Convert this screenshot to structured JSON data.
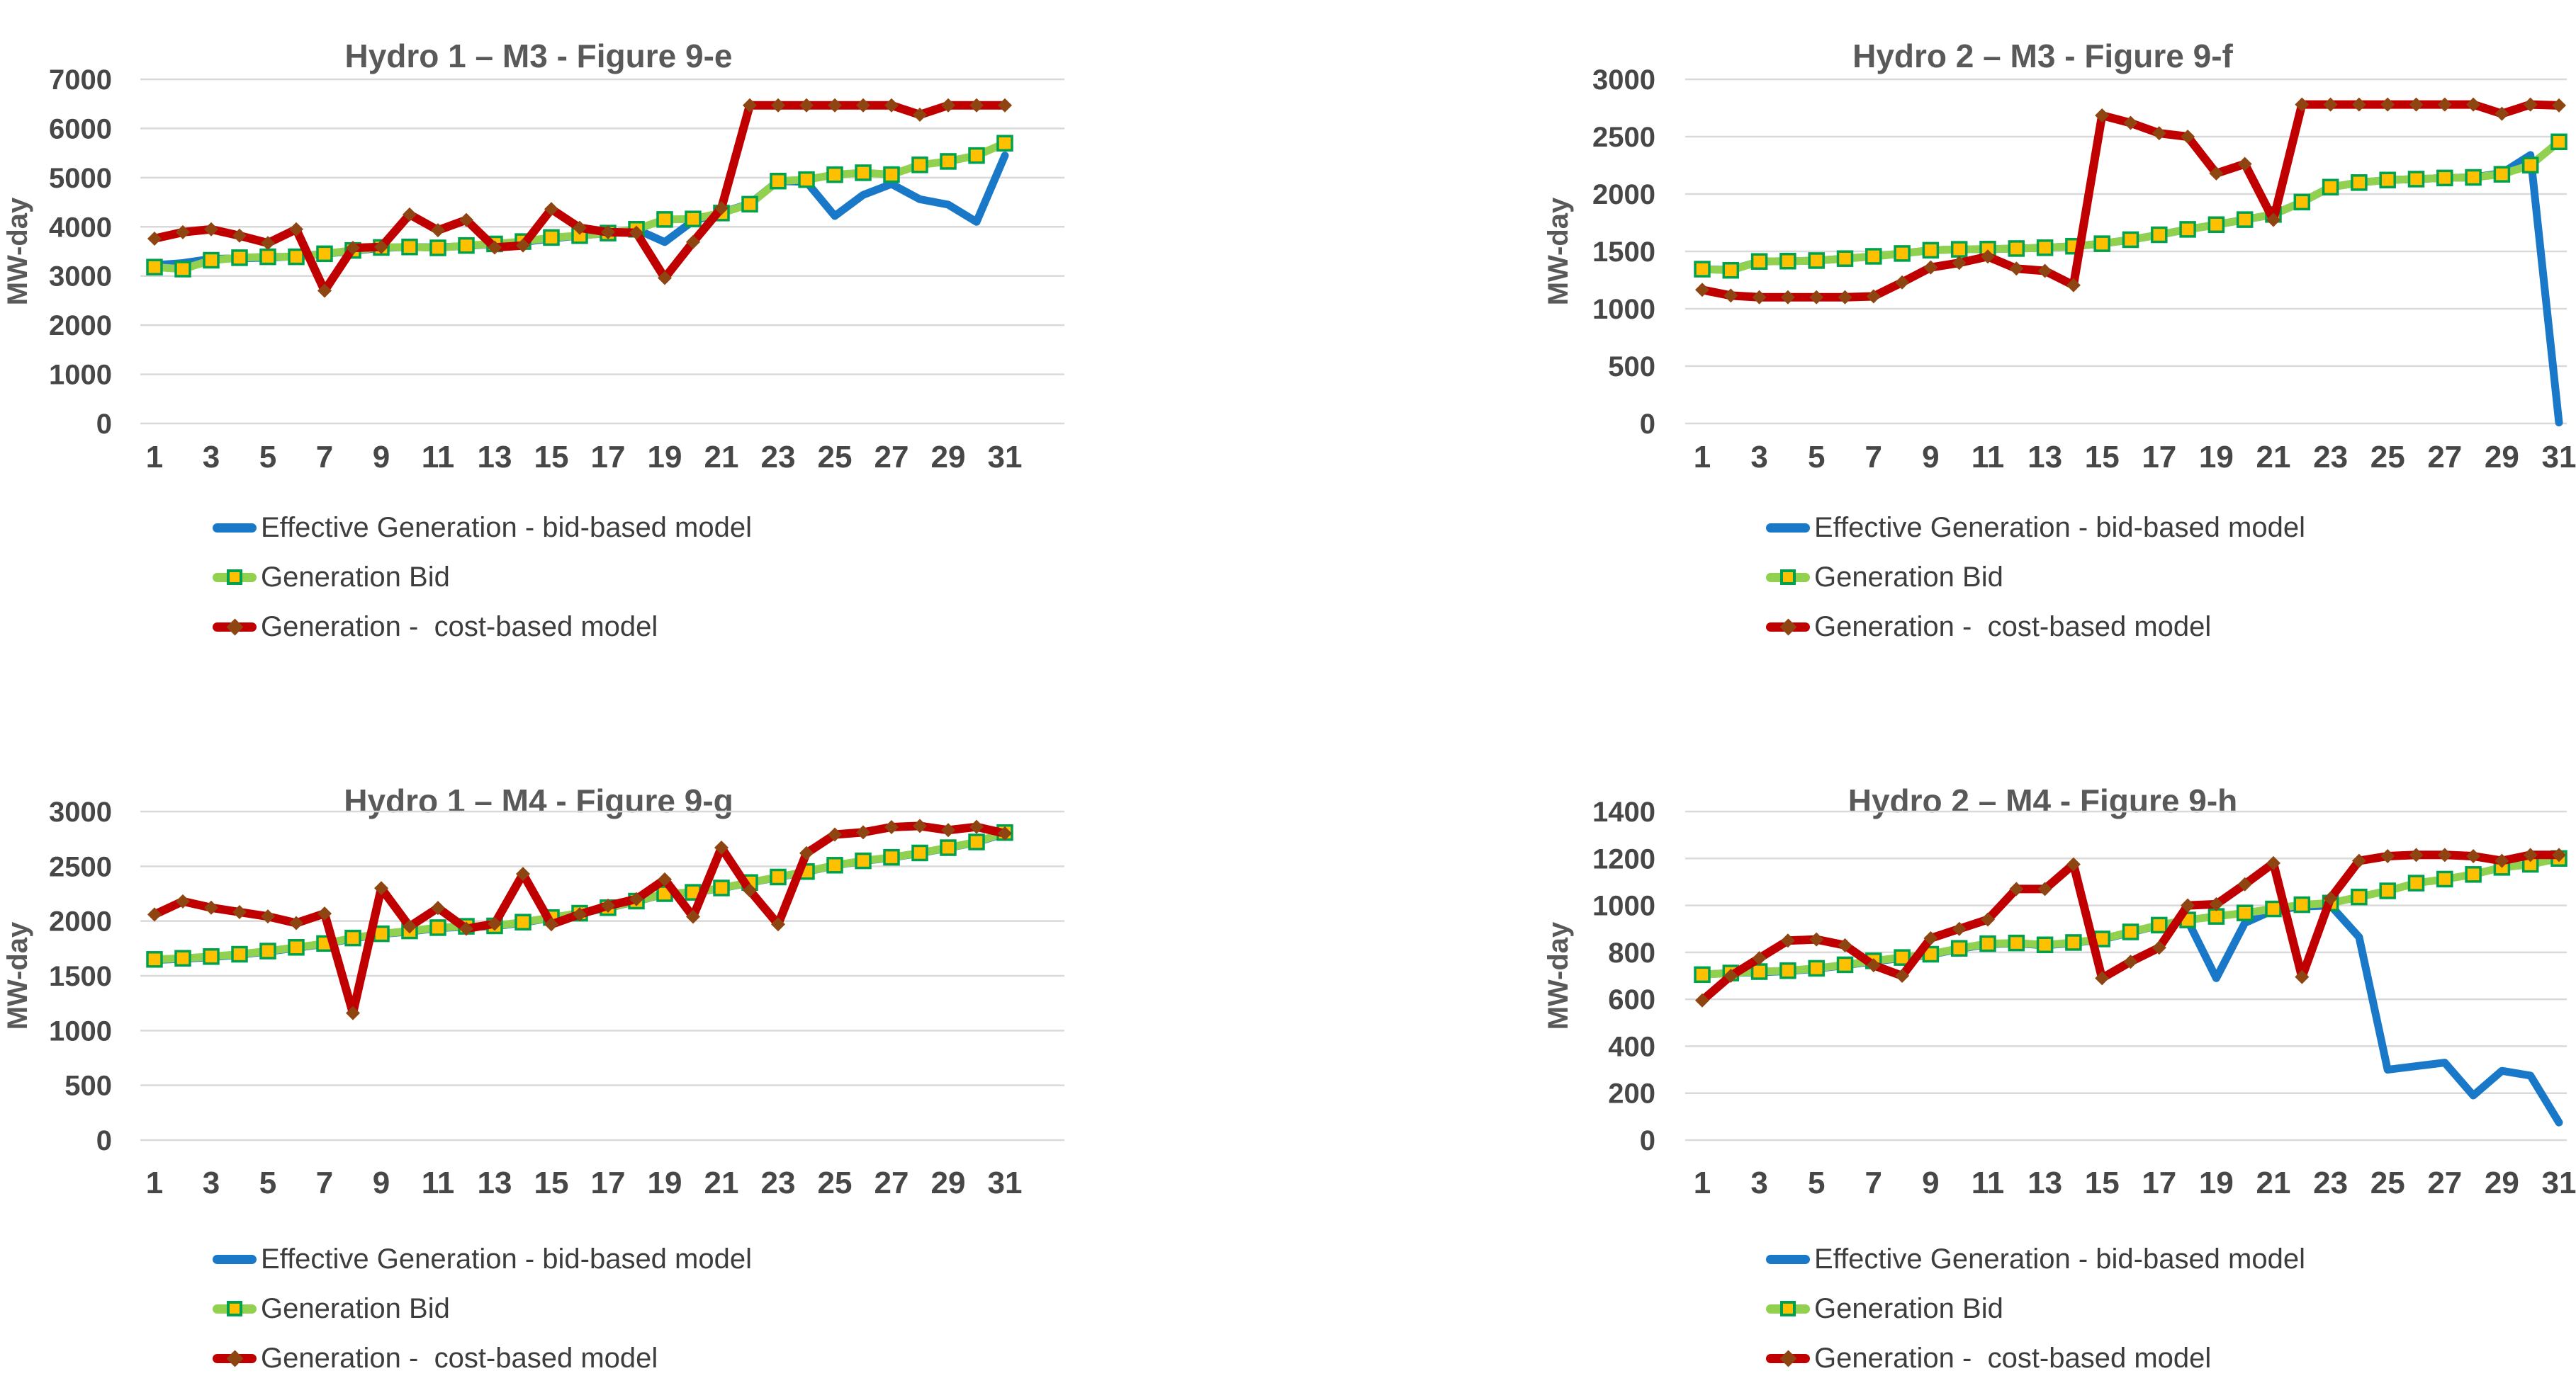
{
  "legend": {
    "items": [
      {
        "label": "Effective Generation - bid-based model",
        "color": "#1979C8",
        "swatch": "line"
      },
      {
        "label": "Generation Bid",
        "color": "#92D050",
        "marker_fill": "#FFC000",
        "marker_border": "#00A14E",
        "swatch": "line-square"
      },
      {
        "label": "Generation -  cost-based model",
        "color": "#C00000",
        "marker_fill": "#8E4512",
        "swatch": "line-diamond"
      }
    ]
  },
  "chart_data": [
    {
      "type": "line",
      "title": "Hydro 1 – M3 - Figure 9-e",
      "ylabel": "MW-day",
      "xlabel": "",
      "ylim": [
        0,
        7000
      ],
      "ystep": 1000,
      "x_ticks": [
        1,
        3,
        5,
        7,
        9,
        11,
        13,
        15,
        17,
        19,
        21,
        23,
        25,
        27,
        29,
        31
      ],
      "grid": true,
      "legend_position": "bottom-left",
      "x": [
        1,
        2,
        3,
        4,
        5,
        6,
        7,
        8,
        9,
        10,
        11,
        12,
        13,
        14,
        15,
        16,
        17,
        18,
        19,
        20,
        21,
        22,
        23,
        24,
        25,
        26,
        27,
        28,
        29,
        30,
        31
      ],
      "series": [
        {
          "name": "Effective Generation - bid-based model",
          "color": "#1979C8",
          "width": 11,
          "marker": "none",
          "values": [
            3220,
            3262,
            3348,
            3360,
            3372,
            3400,
            3450,
            3510,
            3570,
            3590,
            3580,
            3612,
            3650,
            3690,
            3760,
            3822,
            3870,
            3950,
            3690,
            4120,
            4290,
            4470,
            4930,
            4915,
            4220,
            4650,
            4870,
            4560,
            4450,
            4100,
            5450
          ]
        },
        {
          "name": "Generation Bid",
          "color": "#92D050",
          "width": 11,
          "marker": "square",
          "marker_fill": "#FFC000",
          "marker_border": "#00A14E",
          "values": [
            3180,
            3140,
            3320,
            3372,
            3390,
            3390,
            3452,
            3520,
            3580,
            3590,
            3572,
            3620,
            3652,
            3700,
            3782,
            3820,
            3872,
            3950,
            4150,
            4160,
            4280,
            4460,
            4930,
            4960,
            5060,
            5100,
            5062,
            5260,
            5330,
            5450,
            5700
          ]
        },
        {
          "name": "Generation -  cost-based model",
          "color": "#C00000",
          "width": 12,
          "marker": "diamond",
          "marker_fill": "#8E4512",
          "values": [
            3760,
            3890,
            3950,
            3820,
            3670,
            3950,
            2700,
            3570,
            3590,
            4250,
            3930,
            4140,
            3580,
            3620,
            4360,
            3980,
            3890,
            3880,
            2960,
            3690,
            4380,
            6470,
            6470,
            6470,
            6470,
            6470,
            6470,
            6280,
            6470,
            6470,
            6470
          ]
        }
      ]
    },
    {
      "type": "line",
      "title": "Hydro 2 – M3 - Figure 9-f",
      "ylabel": "MW-day",
      "xlabel": "",
      "ylim": [
        0,
        3000
      ],
      "ystep": 500,
      "x_ticks": [
        1,
        3,
        5,
        7,
        9,
        11,
        13,
        15,
        17,
        19,
        21,
        23,
        25,
        27,
        29,
        31
      ],
      "grid": true,
      "legend_position": "bottom-left",
      "x": [
        1,
        2,
        3,
        4,
        5,
        6,
        7,
        8,
        9,
        10,
        11,
        12,
        13,
        14,
        15,
        16,
        17,
        18,
        19,
        20,
        21,
        22,
        23,
        24,
        25,
        26,
        27,
        28,
        29,
        30,
        31
      ],
      "series": [
        {
          "name": "Effective Generation - bid-based model",
          "color": "#1979C8",
          "width": 11,
          "marker": "none",
          "values": [
            1345,
            1338,
            1412,
            1415,
            1420,
            1437,
            1457,
            1482,
            1510,
            1518,
            1520,
            1525,
            1532,
            1545,
            1567,
            1602,
            1645,
            1692,
            1733,
            1777,
            1822,
            1930,
            2060,
            2100,
            2122,
            2130,
            2140,
            2145,
            2182,
            2340,
            8
          ]
        },
        {
          "name": "Generation Bid",
          "color": "#92D050",
          "width": 11,
          "marker": "square",
          "marker_fill": "#FFC000",
          "marker_border": "#00A14E",
          "values": [
            1345,
            1335,
            1412,
            1415,
            1420,
            1437,
            1457,
            1482,
            1510,
            1518,
            1520,
            1525,
            1532,
            1545,
            1567,
            1602,
            1645,
            1692,
            1733,
            1777,
            1822,
            1930,
            2060,
            2100,
            2122,
            2130,
            2140,
            2145,
            2172,
            2252,
            2455
          ]
        },
        {
          "name": "Generation -  cost-based model",
          "color": "#C00000",
          "width": 12,
          "marker": "diamond",
          "marker_fill": "#8E4512",
          "values": [
            1165,
            1115,
            1100,
            1100,
            1100,
            1100,
            1108,
            1230,
            1360,
            1400,
            1455,
            1350,
            1330,
            1205,
            2685,
            2620,
            2530,
            2500,
            2180,
            2262,
            1775,
            2780,
            2780,
            2780,
            2780,
            2780,
            2780,
            2780,
            2700,
            2780,
            2772
          ]
        }
      ]
    },
    {
      "type": "line",
      "title": "Hydro 1 – M4 - Figure 9-g",
      "ylabel": "MW-day",
      "xlabel": "",
      "ylim": [
        0,
        3000
      ],
      "ystep": 500,
      "x_ticks": [
        1,
        3,
        5,
        7,
        9,
        11,
        13,
        15,
        17,
        19,
        21,
        23,
        25,
        27,
        29,
        31
      ],
      "grid": true,
      "legend_position": "bottom-left",
      "x": [
        1,
        2,
        3,
        4,
        5,
        6,
        7,
        8,
        9,
        10,
        11,
        12,
        13,
        14,
        15,
        16,
        17,
        18,
        19,
        20,
        21,
        22,
        23,
        24,
        25,
        26,
        27,
        28,
        29,
        30,
        31
      ],
      "series": [
        {
          "name": "Effective Generation - bid-based model",
          "color": "#1979C8",
          "width": 11,
          "marker": "none",
          "values": [
            1645,
            1655,
            1670,
            1692,
            1722,
            1755,
            1790,
            1840,
            1880,
            1905,
            1935,
            1948,
            1952,
            1985,
            2030,
            2070,
            2120,
            2180,
            2248,
            2260,
            2300,
            2350,
            2400,
            2450,
            2508,
            2548,
            2580,
            2620,
            2668,
            2720,
            2800
          ]
        },
        {
          "name": "Generation Bid",
          "color": "#92D050",
          "width": 11,
          "marker": "square",
          "marker_fill": "#FFC000",
          "marker_border": "#00A14E",
          "values": [
            1650,
            1660,
            1676,
            1697,
            1726,
            1760,
            1795,
            1845,
            1884,
            1910,
            1940,
            1952,
            1956,
            1990,
            2032,
            2072,
            2122,
            2182,
            2250,
            2262,
            2302,
            2352,
            2402,
            2452,
            2510,
            2550,
            2582,
            2622,
            2670,
            2722,
            2808
          ]
        },
        {
          "name": "Generation -  cost-based model",
          "color": "#C00000",
          "width": 12,
          "marker": "diamond",
          "marker_fill": "#8E4512",
          "values": [
            2060,
            2180,
            2122,
            2082,
            2042,
            1982,
            2068,
            1160,
            2300,
            1950,
            2120,
            1930,
            1975,
            2430,
            1970,
            2062,
            2140,
            2200,
            2380,
            2040,
            2670,
            2280,
            1970,
            2620,
            2790,
            2810,
            2858,
            2868,
            2830,
            2860,
            2800
          ]
        }
      ]
    },
    {
      "type": "line",
      "title": "Hydro 2 – M4 - Figure 9-h",
      "ylabel": "MW-day",
      "xlabel": "",
      "ylim": [
        0,
        1400
      ],
      "ystep": 200,
      "x_ticks": [
        1,
        3,
        5,
        7,
        9,
        11,
        13,
        15,
        17,
        19,
        21,
        23,
        25,
        27,
        29,
        31
      ],
      "grid": true,
      "legend_position": "bottom-left",
      "x": [
        1,
        2,
        3,
        4,
        5,
        6,
        7,
        8,
        9,
        10,
        11,
        12,
        13,
        14,
        15,
        16,
        17,
        18,
        19,
        20,
        21,
        22,
        23,
        24,
        25,
        26,
        27,
        28,
        29,
        30,
        31
      ],
      "series": [
        {
          "name": "Effective Generation - bid-based model",
          "color": "#1979C8",
          "width": 11,
          "marker": "none",
          "values": [
            705,
            712,
            715,
            720,
            730,
            745,
            762,
            775,
            790,
            815,
            835,
            838,
            830,
            840,
            855,
            885,
            915,
            935,
            690,
            925,
            980,
            995,
            1000,
            865,
            300,
            315,
            330,
            190,
            295,
            275,
            75
          ]
        },
        {
          "name": "Generation Bid",
          "color": "#92D050",
          "width": 11,
          "marker": "square",
          "marker_fill": "#FFC000",
          "marker_border": "#00A14E",
          "values": [
            705,
            712,
            718,
            722,
            732,
            747,
            764,
            778,
            792,
            817,
            837,
            840,
            832,
            842,
            857,
            887,
            916,
            938,
            953,
            968,
            985,
            1003,
            1010,
            1036,
            1062,
            1095,
            1112,
            1132,
            1162,
            1175,
            1200
          ]
        },
        {
          "name": "Generation -  cost-based model",
          "color": "#C00000",
          "width": 12,
          "marker": "diamond",
          "marker_fill": "#8E4512",
          "values": [
            595,
            700,
            775,
            850,
            855,
            830,
            745,
            700,
            860,
            900,
            940,
            1070,
            1070,
            1175,
            690,
            760,
            820,
            1000,
            1005,
            1090,
            1180,
            695,
            1030,
            1190,
            1210,
            1215,
            1215,
            1210,
            1190,
            1215,
            1215
          ]
        }
      ]
    }
  ]
}
